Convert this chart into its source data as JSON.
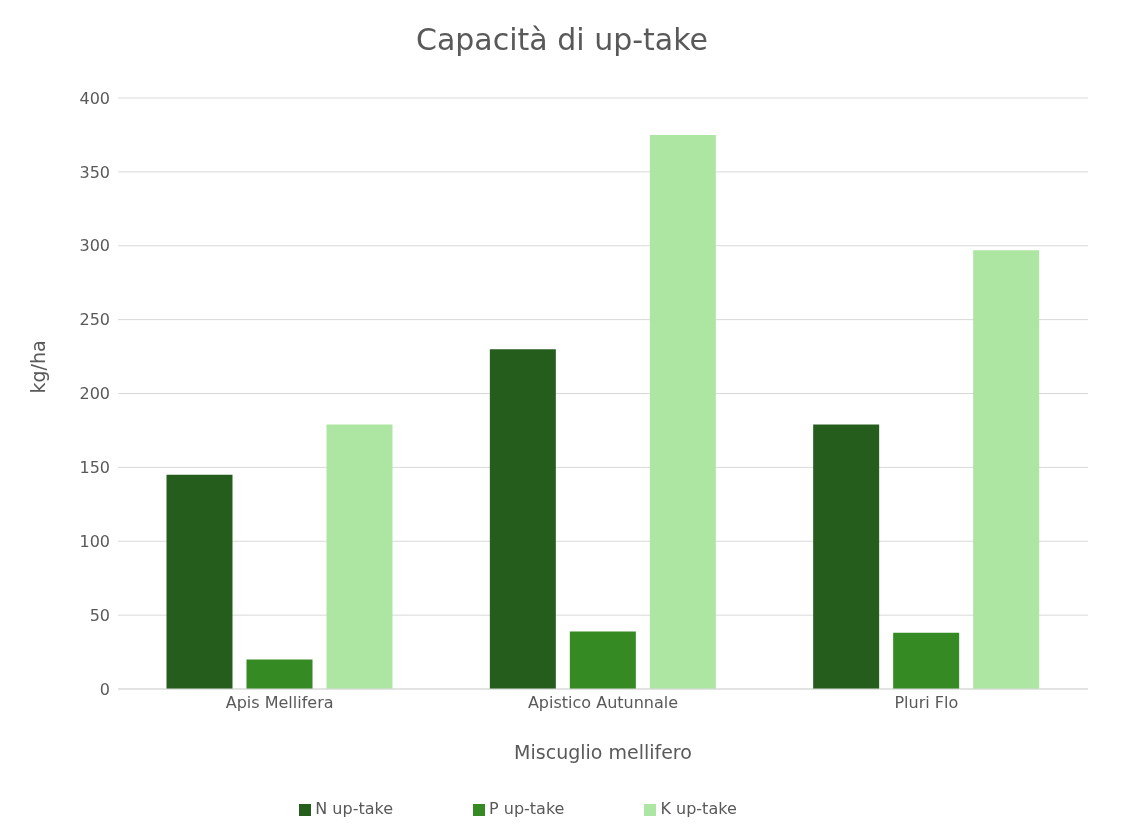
{
  "chart_data": {
    "type": "bar",
    "title": "Capacità di up-take",
    "xlabel": "Miscuglio mellifero",
    "ylabel": "kg/ha",
    "categories": [
      "Apis Mellifera",
      "Apistico Autunnale",
      "Pluri Flo"
    ],
    "series": [
      {
        "name": "N up-take",
        "color": "#255e1c",
        "values": [
          145,
          230,
          179
        ]
      },
      {
        "name": "P up-take",
        "color": "#358a24",
        "values": [
          20,
          39,
          38
        ]
      },
      {
        "name": "K up-take",
        "color": "#ade6a3",
        "values": [
          179,
          375,
          297
        ]
      }
    ],
    "ylim": [
      0,
      400
    ],
    "yticks": [
      0,
      50,
      100,
      150,
      200,
      250,
      300,
      350,
      400
    ],
    "grid": "y",
    "legend": "bottom"
  }
}
